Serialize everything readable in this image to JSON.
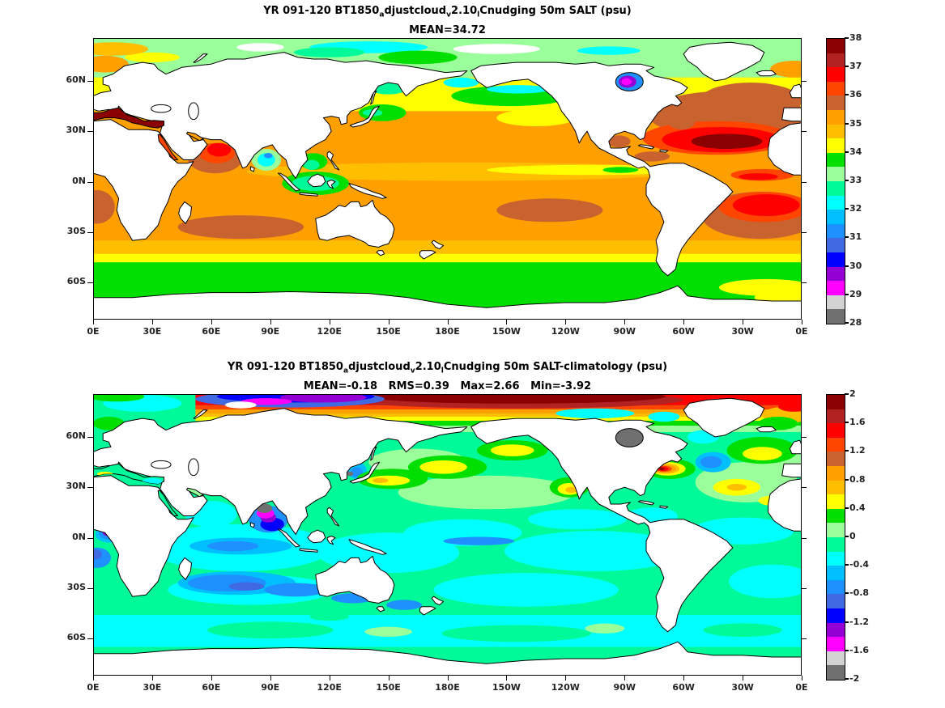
{
  "figure_background": "#FFFFFF",
  "land_color": "#FFFFFF",
  "coast_color": "#000000",
  "palette_top_to_bottom": [
    "#8B0000",
    "#B22222",
    "#FF0000",
    "#FF4500",
    "#C8622F",
    "#FFA000",
    "#FFBE00",
    "#FFFF00",
    "#00DF00",
    "#9AFF9A",
    "#00FA9A",
    "#00FFFF",
    "#00BFFF",
    "#1E90FF",
    "#4169E1",
    "#0000FF",
    "#9400D3",
    "#FF00FF",
    "#D3D3D3",
    "#707070"
  ],
  "panels": [
    {
      "title_segments": [
        {
          "t": "YR 091-120 BT1850"
        },
        {
          "t": "a",
          "sub": true
        },
        {
          "t": "djustcloud"
        },
        {
          "t": "v",
          "sub": true
        },
        {
          "t": "2.10"
        },
        {
          "t": "l",
          "sub": true
        },
        {
          "t": "Cnudging 50m SALT (psu)"
        }
      ],
      "subtitle": "MEAN=34.72",
      "colorbar_ticks": [
        "38",
        "37",
        "36",
        "35",
        "34",
        "33",
        "32",
        "31",
        "30",
        "29",
        "28"
      ]
    },
    {
      "title_segments": [
        {
          "t": "YR 091-120 BT1850"
        },
        {
          "t": "a",
          "sub": true
        },
        {
          "t": "djustcloud"
        },
        {
          "t": "v",
          "sub": true
        },
        {
          "t": "2.10"
        },
        {
          "t": "l",
          "sub": true
        },
        {
          "t": "Cnudging 50m SALT-climatology (psu)"
        }
      ],
      "subtitle": "MEAN=-0.18   RMS=0.39   Max=2.66   Min=-3.92",
      "colorbar_ticks": [
        "2",
        "1.6",
        "1.2",
        "0.8",
        "0.4",
        "0",
        "-0.4",
        "-0.8",
        "-1.2",
        "-1.6",
        "-2"
      ]
    }
  ],
  "axes": {
    "x_ticks": [
      "0E",
      "30E",
      "60E",
      "90E",
      "120E",
      "150E",
      "180E",
      "150W",
      "120W",
      "90W",
      "60W",
      "30W",
      "0E"
    ],
    "y_ticks": [
      "60N",
      "30N",
      "0N",
      "30S",
      "60S"
    ]
  },
  "chart_data": {
    "type": "filled_contour_map",
    "projection": "equirectangular",
    "lon_range_deg_east": [
      0,
      360
    ],
    "lat_range_deg": [
      -82,
      85.5
    ],
    "x_tick_lons_deg_east": [
      0,
      30,
      60,
      90,
      120,
      150,
      180,
      210,
      240,
      270,
      300,
      330,
      360
    ],
    "y_tick_lats_deg": [
      60,
      30,
      0,
      -30,
      -60
    ],
    "panels": [
      {
        "title": "YR 091-120 BT1850_adjustcloud_v2.10_lCnudging 50m SALT (psu)",
        "variable": "50m salinity",
        "units": "psu",
        "stats": {
          "mean": 34.72
        },
        "colorbar": {
          "min": 28,
          "max": 38,
          "label_step": 1,
          "bins": 20,
          "bin_width": 0.5
        },
        "features": [
          "Mediterranean Sea at maximum ~38 psu (dark red)",
          "North Atlantic subtropical gyre core 37.5-38 psu around 20-30N",
          "South Atlantic gyre core ~36.5-37 psu",
          "Arabian Sea 36.5-37 psu; brown 35.5-36 ring south of it",
          "Indian and South Pacific subtropical gyres 35.5-36 psu (brown cores)",
          "Broad subtropical oceans 35-35.5 psu (orange)",
          "Equatorial Pacific band 34.5-35 psu with fresh green patch off Panama",
          "Mid-latitude transition 34-34.5 psu (yellow)",
          "Southern Ocean south of ~45S 33.5-34 psu (green), Weddell sector 34-34.5",
          "NE/NW Pacific coasts and Okhotsk 32.5-33.5 psu",
          "Bay of Bengal 31-32.5 psu (cyan/blue)",
          "Hudson Bay 29-30 psu (magenta/violet/blue)",
          "Arctic shelves 32.5-33.5 psu with no-data white patches"
        ]
      },
      {
        "title": "YR 091-120 BT1850_adjustcloud_v2.10_lCnudging 50m SALT-climatology (psu)",
        "variable": "50m salinity bias vs climatology",
        "units": "psu",
        "stats": {
          "mean": -0.18,
          "rms": 0.39,
          "max": 2.66,
          "min": -3.92
        },
        "colorbar": {
          "min": -2,
          "max": 2,
          "label_step": 0.4,
          "bins": 20,
          "bin_width": 0.2
        },
        "features": [
          "Arctic Ocean (Pacific side) +1.8 to +2 dark red band along top",
          "Arctic shelf north of Siberia -1 to -1.6 (blue/violet/magenta)",
          "Gulf Stream off New England local max to ~+2 (figure Max=2.66)",
          "Blue blob -0.6 to -1 southeast of Newfoundland",
          "Bay of Bengal strong fresh bias, below -2 gray (figure Min=-3.92)",
          "Sea of Japan -0.4 to -1 with gray spot",
          "Kuroshio and 40N mid-Pacific +0.4 to +0.8 yellow blobs",
          "Gulf of Alaska and California coast +0.4 to +0.8",
          "North Atlantic 20-35N and 45-55N +0.4 to +0.8 yellow patches",
          "South Indian subtropics -0.6 to -1.0 (dodger/royal blue)",
          "Gulf of Guinea spot -1.2 to -1.6 (violet/magenta core)",
          "Hudson Bay and Foxe Basin below -1.8 (gray)",
          "Most of world ocean within -0.4 to +0.2 (cyan / spring green)"
        ]
      }
    ]
  }
}
